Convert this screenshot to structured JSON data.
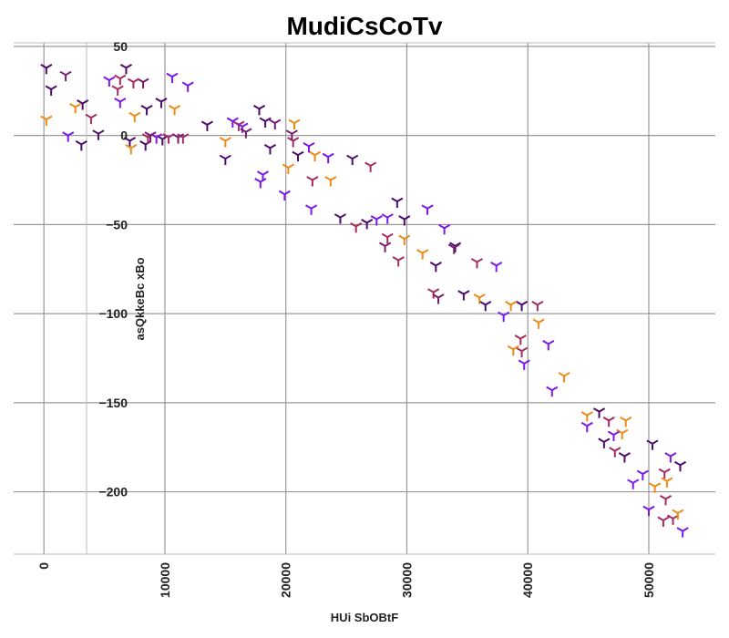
{
  "chart_data": {
    "type": "scatter",
    "title": "MudiCsCoTv",
    "xlabel": "HUi SbOBtF",
    "ylabel": "asQkkeBc xBo",
    "xlim": [
      -2500,
      55500
    ],
    "ylim": [
      -235,
      52
    ],
    "x_ticks": [
      0,
      10000,
      20000,
      30000,
      40000,
      50000
    ],
    "x_tick_labels": [
      "0",
      "10000",
      "20000",
      "30000",
      "40000",
      "50000"
    ],
    "y_ticks": [
      50,
      0,
      -50,
      -100,
      -150,
      -200
    ],
    "y_tick_labels": [
      "50",
      "0",
      "−50",
      "−100",
      "−150",
      "−200"
    ],
    "grid": true,
    "marker": "tri-down",
    "colors": [
      "#4a0c6b",
      "#781c6d",
      "#a52c60",
      "#ed8b18",
      "#7c18e8"
    ],
    "points": [
      [
        200,
        38,
        0
      ],
      [
        600,
        26,
        0
      ],
      [
        1800,
        34,
        1
      ],
      [
        3200,
        18,
        0
      ],
      [
        3100,
        -5,
        0
      ],
      [
        4500,
        1,
        0
      ],
      [
        6800,
        38,
        0
      ],
      [
        8200,
        30,
        1
      ],
      [
        8500,
        15,
        0
      ],
      [
        9700,
        19,
        0
      ],
      [
        13500,
        6,
        0
      ],
      [
        15000,
        -13,
        0
      ],
      [
        17800,
        15,
        0
      ],
      [
        18300,
        8,
        0
      ],
      [
        18700,
        -7,
        0
      ],
      [
        21000,
        -11,
        0
      ],
      [
        24500,
        -46,
        0
      ],
      [
        25500,
        -13,
        0
      ],
      [
        26700,
        -49,
        0
      ],
      [
        29200,
        -37,
        0
      ],
      [
        29800,
        -47,
        0
      ],
      [
        32400,
        -73,
        0
      ],
      [
        34000,
        -62,
        0
      ],
      [
        34700,
        -89,
        0
      ],
      [
        36500,
        -95,
        0
      ],
      [
        39500,
        -95,
        0
      ],
      [
        45900,
        -155,
        0
      ],
      [
        46300,
        -172,
        0
      ],
      [
        48000,
        -180,
        0
      ],
      [
        50300,
        -173,
        0
      ],
      [
        52600,
        -185,
        0
      ],
      [
        7100,
        -3,
        0
      ],
      [
        8400,
        -5,
        0
      ],
      [
        9800,
        -2,
        0
      ],
      [
        6300,
        32,
        2
      ],
      [
        7400,
        30,
        2
      ],
      [
        6100,
        26,
        2
      ],
      [
        3900,
        10,
        2
      ],
      [
        11500,
        -1,
        2
      ],
      [
        16100,
        6,
        2
      ],
      [
        20600,
        -3,
        2
      ],
      [
        22200,
        -25,
        2
      ],
      [
        25800,
        -51,
        2
      ],
      [
        27000,
        -17,
        2
      ],
      [
        28400,
        -57,
        2
      ],
      [
        29300,
        -70,
        2
      ],
      [
        32200,
        -88,
        2
      ],
      [
        35800,
        -71,
        2
      ],
      [
        39400,
        -114,
        2
      ],
      [
        39500,
        -121,
        2
      ],
      [
        40800,
        -95,
        2
      ],
      [
        46700,
        -160,
        2
      ],
      [
        47200,
        -177,
        2
      ],
      [
        51200,
        -216,
        2
      ],
      [
        51400,
        -204,
        2
      ],
      [
        52000,
        -215,
        2
      ],
      [
        51300,
        -189,
        2
      ],
      [
        8600,
        -1,
        2
      ],
      [
        10300,
        -1,
        2
      ],
      [
        200,
        9,
        3
      ],
      [
        2600,
        16,
        3
      ],
      [
        7500,
        11,
        3
      ],
      [
        10800,
        15,
        3
      ],
      [
        15000,
        -3,
        3
      ],
      [
        20200,
        -18,
        3
      ],
      [
        20700,
        7,
        3
      ],
      [
        22400,
        -11,
        3
      ],
      [
        23700,
        -25,
        3
      ],
      [
        29800,
        -58,
        3
      ],
      [
        31300,
        -66,
        3
      ],
      [
        36000,
        -91,
        3
      ],
      [
        38600,
        -95,
        3
      ],
      [
        38800,
        -120,
        3
      ],
      [
        40900,
        -105,
        3
      ],
      [
        43000,
        -135,
        3
      ],
      [
        44900,
        -157,
        3
      ],
      [
        47800,
        -167,
        3
      ],
      [
        48100,
        -160,
        3
      ],
      [
        50500,
        -197,
        3
      ],
      [
        51500,
        -194,
        3
      ],
      [
        52400,
        -212,
        3
      ],
      [
        7200,
        -7,
        3
      ],
      [
        2000,
        0,
        4
      ],
      [
        5400,
        31,
        4
      ],
      [
        6300,
        19,
        4
      ],
      [
        10600,
        33,
        4
      ],
      [
        11900,
        28,
        4
      ],
      [
        15600,
        8,
        4
      ],
      [
        16400,
        5,
        4
      ],
      [
        18100,
        -22,
        4
      ],
      [
        17900,
        -26,
        4
      ],
      [
        19900,
        -33,
        4
      ],
      [
        21900,
        -6,
        4
      ],
      [
        22100,
        -41,
        4
      ],
      [
        23500,
        -12,
        4
      ],
      [
        27500,
        -47,
        4
      ],
      [
        28400,
        -46,
        4
      ],
      [
        31700,
        -41,
        4
      ],
      [
        33100,
        -52,
        4
      ],
      [
        37400,
        -73,
        4
      ],
      [
        38000,
        -101,
        4
      ],
      [
        39700,
        -128,
        4
      ],
      [
        41700,
        -117,
        4
      ],
      [
        42000,
        -143,
        4
      ],
      [
        44900,
        -163,
        4
      ],
      [
        47100,
        -168,
        4
      ],
      [
        48700,
        -195,
        4
      ],
      [
        49500,
        -190,
        4
      ],
      [
        50000,
        -210,
        4
      ],
      [
        51800,
        -180,
        4
      ],
      [
        52800,
        -222,
        4
      ],
      [
        9300,
        -1,
        4
      ],
      [
        20500,
        1,
        1
      ],
      [
        16700,
        2,
        1
      ],
      [
        19100,
        7,
        1
      ],
      [
        11100,
        -1,
        1
      ],
      [
        8800,
        0,
        1
      ],
      [
        28200,
        -62,
        1
      ],
      [
        32600,
        -91,
        1
      ],
      [
        33900,
        -63,
        1
      ]
    ]
  }
}
